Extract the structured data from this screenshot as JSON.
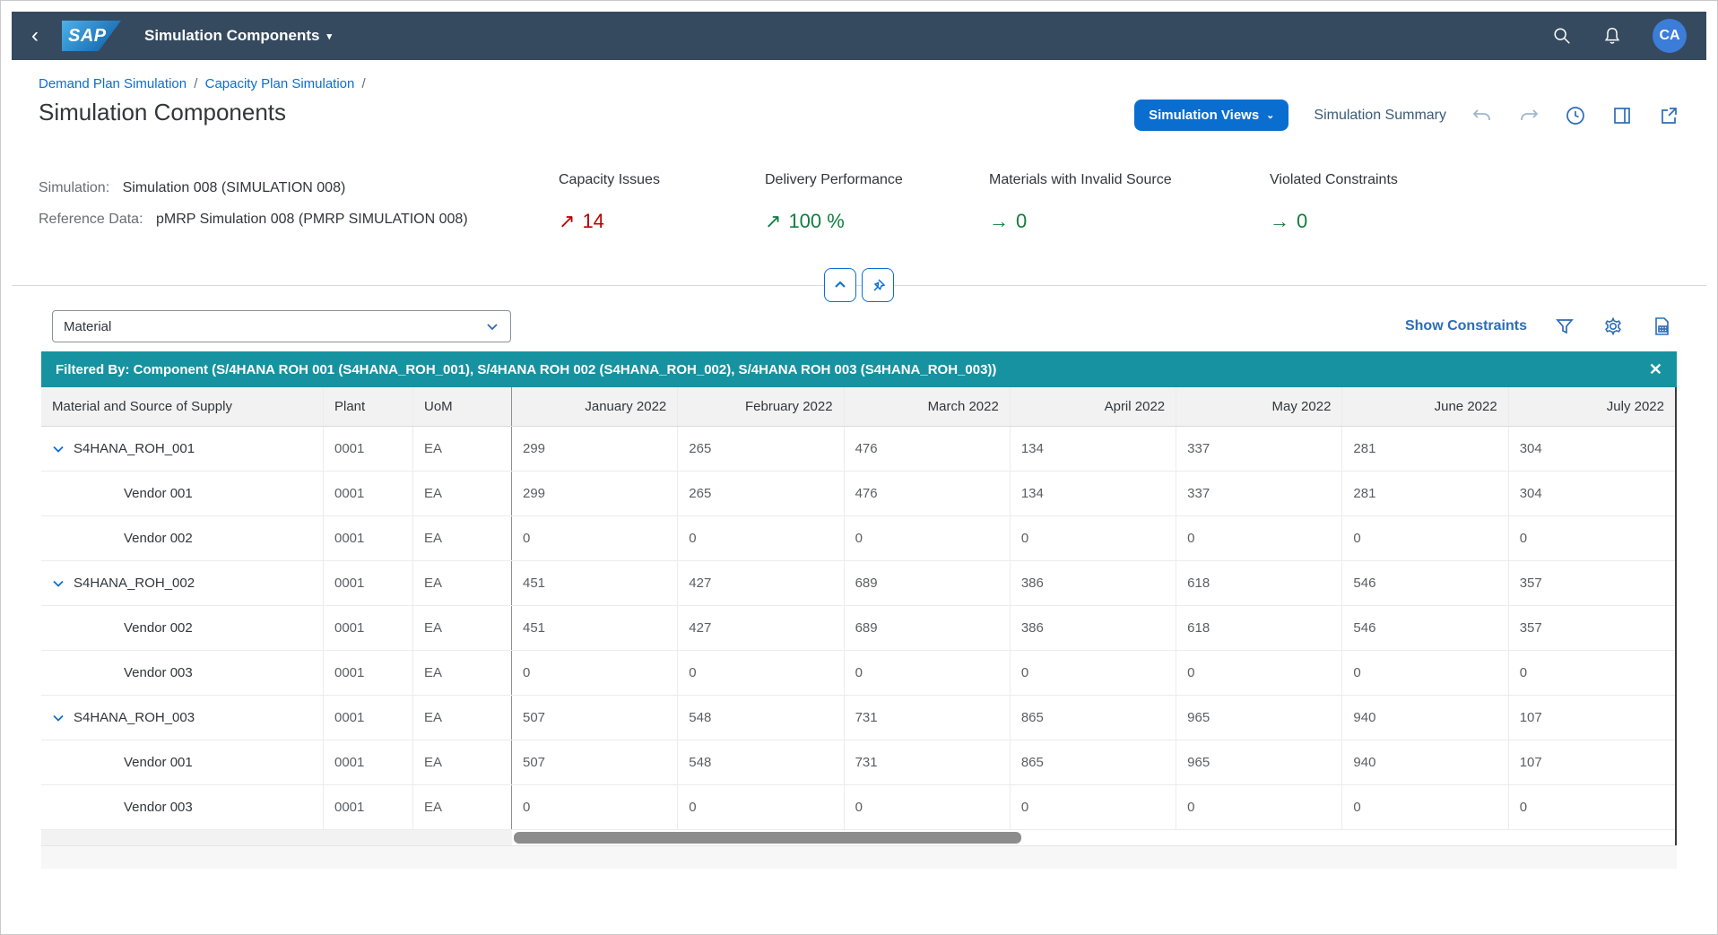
{
  "shell": {
    "back_icon": "‹",
    "logo_text": "SAP",
    "app_title": "Simulation Components",
    "title_caret": "▾",
    "avatar_initials": "CA"
  },
  "breadcrumb": {
    "link1": "Demand Plan Simulation",
    "link2": "Capacity Plan Simulation",
    "separator": "/"
  },
  "page": {
    "title": "Simulation Components"
  },
  "header_actions": {
    "views_button": "Simulation Views",
    "views_caret": "⌄",
    "summary_link": "Simulation Summary"
  },
  "sim_info": {
    "simulation_label": "Simulation:",
    "simulation_value": "Simulation 008 (SIMULATION 008)",
    "reference_label": "Reference Data:",
    "reference_value": "pMRP Simulation 008 (PMRP SIMULATION 008)"
  },
  "kpis": [
    {
      "label": "Capacity Issues",
      "arrow": "↗",
      "value": "14",
      "color": "#bb0000"
    },
    {
      "label": "Delivery Performance",
      "arrow": "↗",
      "value": "100 %",
      "color": "#107e3e"
    },
    {
      "label": "Materials with Invalid Source",
      "arrow": "→",
      "value": "0",
      "color": "#107e3e"
    },
    {
      "label": "Violated Constraints",
      "arrow": "→",
      "value": "0",
      "color": "#107e3e"
    }
  ],
  "toolbar": {
    "view_select_value": "Material",
    "show_constraints_label": "Show Constraints"
  },
  "filter_bar": {
    "text": "Filtered By: Component (S/4HANA ROH 001 (S4HANA_ROH_001), S/4HANA ROH 002 (S4HANA_ROH_002), S/4HANA ROH 003 (S4HANA_ROH_003))",
    "close_icon": "✕"
  },
  "table": {
    "columns": [
      "Material and Source of Supply",
      "Plant",
      "UoM",
      "January 2022",
      "February 2022",
      "March 2022",
      "April 2022",
      "May 2022",
      "June 2022",
      "July 2022"
    ],
    "rows": [
      {
        "name": "S4HANA_ROH_001",
        "level": 0,
        "expanded": true,
        "plant": "0001",
        "uom": "EA",
        "values": [
          "299",
          "265",
          "476",
          "134",
          "337",
          "281",
          "304"
        ]
      },
      {
        "name": "Vendor 001",
        "level": 1,
        "expanded": false,
        "plant": "0001",
        "uom": "EA",
        "values": [
          "299",
          "265",
          "476",
          "134",
          "337",
          "281",
          "304"
        ]
      },
      {
        "name": "Vendor 002",
        "level": 1,
        "expanded": false,
        "plant": "0001",
        "uom": "EA",
        "values": [
          "0",
          "0",
          "0",
          "0",
          "0",
          "0",
          "0"
        ]
      },
      {
        "name": "S4HANA_ROH_002",
        "level": 0,
        "expanded": true,
        "plant": "0001",
        "uom": "EA",
        "values": [
          "451",
          "427",
          "689",
          "386",
          "618",
          "546",
          "357"
        ]
      },
      {
        "name": "Vendor 002",
        "level": 1,
        "expanded": false,
        "plant": "0001",
        "uom": "EA",
        "values": [
          "451",
          "427",
          "689",
          "386",
          "618",
          "546",
          "357"
        ]
      },
      {
        "name": "Vendor 003",
        "level": 1,
        "expanded": false,
        "plant": "0001",
        "uom": "EA",
        "values": [
          "0",
          "0",
          "0",
          "0",
          "0",
          "0",
          "0"
        ]
      },
      {
        "name": "S4HANA_ROH_003",
        "level": 0,
        "expanded": true,
        "plant": "0001",
        "uom": "EA",
        "values": [
          "507",
          "548",
          "731",
          "865",
          "965",
          "940",
          "107"
        ]
      },
      {
        "name": "Vendor 001",
        "level": 1,
        "expanded": false,
        "plant": "0001",
        "uom": "EA",
        "values": [
          "507",
          "548",
          "731",
          "865",
          "965",
          "940",
          "107"
        ]
      },
      {
        "name": "Vendor 003",
        "level": 1,
        "expanded": false,
        "plant": "0001",
        "uom": "EA",
        "values": [
          "0",
          "0",
          "0",
          "0",
          "0",
          "0",
          "0"
        ]
      }
    ]
  },
  "colors": {
    "shell_bg": "#354a5f",
    "accent_blue": "#0a6ed1",
    "icon_blue": "#2d6cb5",
    "teal_bar": "#1792a0",
    "kpi_red": "#bb0000",
    "kpi_green": "#107e3e"
  }
}
